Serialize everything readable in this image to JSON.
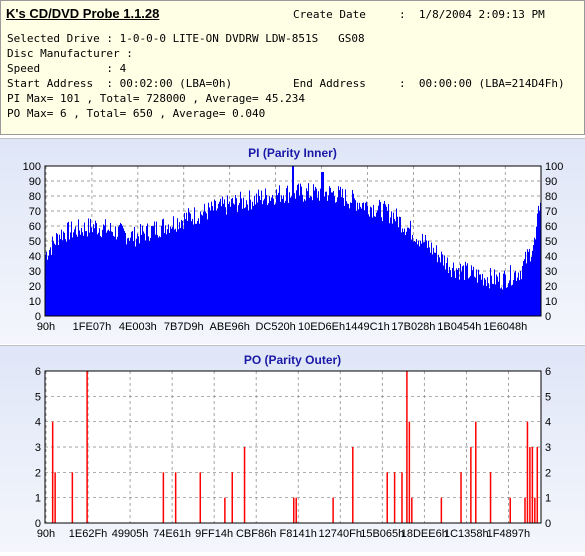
{
  "app": {
    "title": "K's CD/DVD Probe 1.1.28",
    "create_date_label": "Create Date",
    "create_date_value": ":  1/8/2004 2:09:13 PM",
    "lines": [
      "Selected Drive : 1-0-0-0 LITE-ON DVDRW LDW-851S   GS08",
      "Disc Manufacturer :",
      "Speed          : 4",
      "Start Address  : 00:02:00 (LBA=0h)",
      "PI Max= 101 , Total= 728000 , Average= 45.234",
      "PO Max= 6 , Total= 650 , Average= 0.040"
    ],
    "end_address_label": "End Address",
    "end_address_value": ":  00:00:00 (LBA=214D4Fh)"
  },
  "chart_data": [
    {
      "type": "bar",
      "title": "PI (Parity Inner)",
      "color": "#0000ff",
      "ylim": [
        0,
        100
      ],
      "yticks": [
        0,
        10,
        20,
        30,
        40,
        50,
        60,
        70,
        80,
        90,
        100
      ],
      "xticks": [
        "90h",
        "1FE07h",
        "4E003h",
        "7B7D9h",
        "ABE96h",
        "DC520h",
        "10ED6Eh",
        "1449C1h",
        "17B028h",
        "1B0454h",
        "1E6048h"
      ],
      "profile": [
        [
          0,
          41
        ],
        [
          0.03,
          55
        ],
        [
          0.1,
          60
        ],
        [
          0.18,
          53
        ],
        [
          0.28,
          65
        ],
        [
          0.38,
          75
        ],
        [
          0.48,
          82
        ],
        [
          0.58,
          82
        ],
        [
          0.7,
          68
        ],
        [
          0.78,
          45
        ],
        [
          0.82,
          33
        ],
        [
          0.87,
          27
        ],
        [
          0.92,
          24
        ],
        [
          0.96,
          30
        ],
        [
          0.99,
          50
        ],
        [
          1,
          80
        ]
      ],
      "peaks": [
        [
          0.5,
          101
        ],
        [
          0.56,
          96
        ]
      ],
      "grid": true
    },
    {
      "type": "bar",
      "title": "PO (Parity Outer)",
      "color": "#ff0000",
      "ylim": [
        0,
        6
      ],
      "yticks": [
        0,
        1,
        2,
        3,
        4,
        5,
        6
      ],
      "xticks": [
        "90h",
        "1E62Fh",
        "49905h",
        "74E61h",
        "9FF14h",
        "CBF86h",
        "F8141h",
        "12740Fh",
        "15B065h",
        "18DEE6h",
        "1C1358h",
        "1F4897h"
      ],
      "spikes": [
        [
          0.01,
          4
        ],
        [
          0.015,
          2
        ],
        [
          0.05,
          2
        ],
        [
          0.08,
          6
        ],
        [
          0.235,
          2
        ],
        [
          0.26,
          2
        ],
        [
          0.31,
          2
        ],
        [
          0.36,
          1
        ],
        [
          0.375,
          2
        ],
        [
          0.4,
          3
        ],
        [
          0.5,
          1
        ],
        [
          0.505,
          1
        ],
        [
          0.58,
          1
        ],
        [
          0.62,
          3
        ],
        [
          0.69,
          2
        ],
        [
          0.705,
          2
        ],
        [
          0.72,
          2
        ],
        [
          0.73,
          6
        ],
        [
          0.735,
          4
        ],
        [
          0.74,
          1
        ],
        [
          0.8,
          1
        ],
        [
          0.84,
          2
        ],
        [
          0.86,
          3
        ],
        [
          0.87,
          4
        ],
        [
          0.9,
          2
        ],
        [
          0.94,
          1
        ],
        [
          0.97,
          1
        ],
        [
          0.975,
          4
        ],
        [
          0.98,
          3
        ],
        [
          0.985,
          3
        ],
        [
          0.99,
          1
        ],
        [
          0.995,
          3
        ]
      ],
      "grid": true
    }
  ]
}
